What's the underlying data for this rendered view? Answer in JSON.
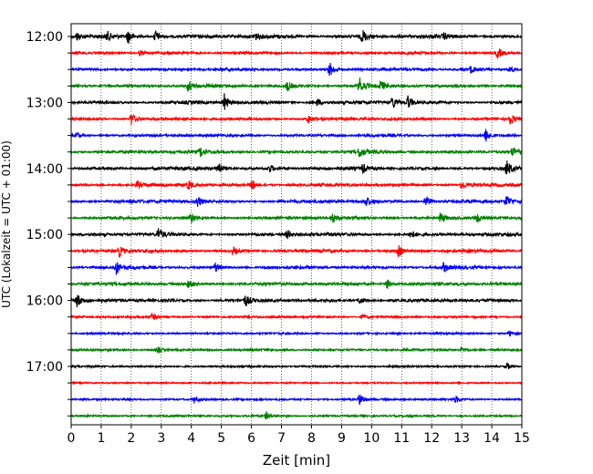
{
  "chart_data": {
    "type": "line",
    "subtype": "helicorder",
    "xlabel": "Zeit  [min]",
    "ylabel": "UTC (Lokalzeit = UTC + 01:00)",
    "xlim": [
      0,
      15
    ],
    "x_ticks": [
      "0",
      "1",
      "2",
      "3",
      "4",
      "5",
      "6",
      "7",
      "8",
      "9",
      "10",
      "11",
      "12",
      "13",
      "14",
      "15"
    ],
    "y_tick_labels": [
      "12:00",
      "13:00",
      "14:00",
      "15:00",
      "16:00",
      "17:00"
    ],
    "trace_start_times": [
      "12:00",
      "12:15",
      "12:30",
      "12:45",
      "13:00",
      "13:15",
      "13:30",
      "13:45",
      "14:00",
      "14:15",
      "14:30",
      "14:45",
      "15:00",
      "15:15",
      "15:30",
      "15:45",
      "16:00",
      "16:15",
      "16:30",
      "16:45",
      "17:00",
      "17:15",
      "17:30",
      "17:45"
    ],
    "trace_colors": [
      "#000000",
      "#ff0000",
      "#0000ff",
      "#008000"
    ],
    "grid": "vertical dotted",
    "traces": [
      {
        "start": "12:00",
        "color": "#000000",
        "activity": 0.7,
        "events": [
          [
            0.2,
            0.4
          ],
          [
            1.2,
            0.5
          ],
          [
            1.9,
            0.8
          ],
          [
            2.8,
            0.7
          ],
          [
            6.1,
            0.4
          ],
          [
            9.7,
            0.7
          ],
          [
            12.4,
            0.3
          ]
        ]
      },
      {
        "start": "12:15",
        "color": "#ff0000",
        "activity": 0.4,
        "events": [
          [
            2.3,
            0.3
          ],
          [
            3.2,
            0.2
          ],
          [
            14.2,
            0.6
          ]
        ]
      },
      {
        "start": "12:30",
        "color": "#0000ff",
        "activity": 0.45,
        "events": [
          [
            8.6,
            0.8
          ],
          [
            13.3,
            0.4
          ],
          [
            14.6,
            0.4
          ]
        ]
      },
      {
        "start": "12:45",
        "color": "#008000",
        "activity": 0.55,
        "events": [
          [
            3.9,
            0.6
          ],
          [
            7.2,
            0.5
          ],
          [
            9.6,
            0.9
          ],
          [
            10.3,
            0.5
          ]
        ]
      },
      {
        "start": "13:00",
        "color": "#000000",
        "activity": 0.55,
        "events": [
          [
            5.1,
            0.9
          ],
          [
            8.2,
            0.4
          ],
          [
            10.7,
            0.7
          ],
          [
            11.2,
            0.7
          ]
        ]
      },
      {
        "start": "13:15",
        "color": "#ff0000",
        "activity": 0.45,
        "events": [
          [
            2.0,
            0.7
          ],
          [
            7.9,
            0.5
          ],
          [
            14.6,
            0.7
          ]
        ]
      },
      {
        "start": "13:30",
        "color": "#0000ff",
        "activity": 0.4,
        "events": [
          [
            0.2,
            0.3
          ],
          [
            13.8,
            0.7
          ]
        ]
      },
      {
        "start": "13:45",
        "color": "#008000",
        "activity": 0.55,
        "events": [
          [
            4.3,
            0.5
          ],
          [
            9.6,
            0.6
          ],
          [
            14.7,
            0.6
          ]
        ]
      },
      {
        "start": "14:00",
        "color": "#000000",
        "activity": 0.55,
        "events": [
          [
            4.9,
            0.7
          ],
          [
            6.6,
            0.4
          ],
          [
            9.7,
            0.5
          ],
          [
            14.5,
            0.8
          ]
        ]
      },
      {
        "start": "14:15",
        "color": "#ff0000",
        "activity": 0.5,
        "events": [
          [
            2.2,
            0.4
          ],
          [
            3.9,
            0.5
          ],
          [
            6.0,
            0.6
          ],
          [
            13.0,
            0.5
          ]
        ]
      },
      {
        "start": "14:30",
        "color": "#0000ff",
        "activity": 0.55,
        "events": [
          [
            4.2,
            0.6
          ],
          [
            9.8,
            0.6
          ],
          [
            11.8,
            0.6
          ],
          [
            14.5,
            0.7
          ]
        ]
      },
      {
        "start": "14:45",
        "color": "#008000",
        "activity": 0.5,
        "events": [
          [
            4.0,
            0.5
          ],
          [
            8.7,
            0.5
          ],
          [
            12.3,
            0.6
          ],
          [
            13.5,
            0.6
          ]
        ]
      },
      {
        "start": "15:00",
        "color": "#000000",
        "activity": 0.55,
        "events": [
          [
            2.9,
            0.7
          ],
          [
            7.2,
            0.5
          ],
          [
            11.3,
            0.5
          ]
        ]
      },
      {
        "start": "15:15",
        "color": "#ff0000",
        "activity": 0.5,
        "events": [
          [
            1.6,
            0.6
          ],
          [
            5.4,
            0.4
          ],
          [
            10.9,
            0.6
          ]
        ]
      },
      {
        "start": "15:30",
        "color": "#0000ff",
        "activity": 0.5,
        "events": [
          [
            1.5,
            0.7
          ],
          [
            4.8,
            0.5
          ],
          [
            12.4,
            0.5
          ]
        ]
      },
      {
        "start": "15:45",
        "color": "#008000",
        "activity": 0.55,
        "events": [
          [
            3.9,
            0.4
          ],
          [
            10.5,
            0.6
          ]
        ]
      },
      {
        "start": "16:00",
        "color": "#000000",
        "activity": 0.55,
        "events": [
          [
            0.2,
            0.7
          ],
          [
            5.8,
            0.6
          ],
          [
            9.6,
            0.4
          ]
        ]
      },
      {
        "start": "16:15",
        "color": "#ff0000",
        "activity": 0.25,
        "events": [
          [
            2.7,
            0.4
          ],
          [
            9.7,
            0.3
          ]
        ]
      },
      {
        "start": "16:30",
        "color": "#0000ff",
        "activity": 0.2,
        "events": [
          [
            14.6,
            0.3
          ]
        ]
      },
      {
        "start": "16:45",
        "color": "#008000",
        "activity": 0.3,
        "events": [
          [
            2.9,
            0.3
          ],
          [
            13.0,
            0.3
          ]
        ]
      },
      {
        "start": "17:00",
        "color": "#000000",
        "activity": 0.2,
        "events": [
          [
            14.5,
            0.4
          ]
        ]
      },
      {
        "start": "17:15",
        "color": "#ff0000",
        "activity": 0.08,
        "events": []
      },
      {
        "start": "17:30",
        "color": "#0000ff",
        "activity": 0.2,
        "events": [
          [
            4.1,
            0.4
          ],
          [
            9.6,
            0.7
          ],
          [
            12.8,
            0.4
          ]
        ]
      },
      {
        "start": "17:45",
        "color": "#008000",
        "activity": 0.2,
        "events": [
          [
            6.5,
            0.4
          ]
        ]
      }
    ]
  }
}
